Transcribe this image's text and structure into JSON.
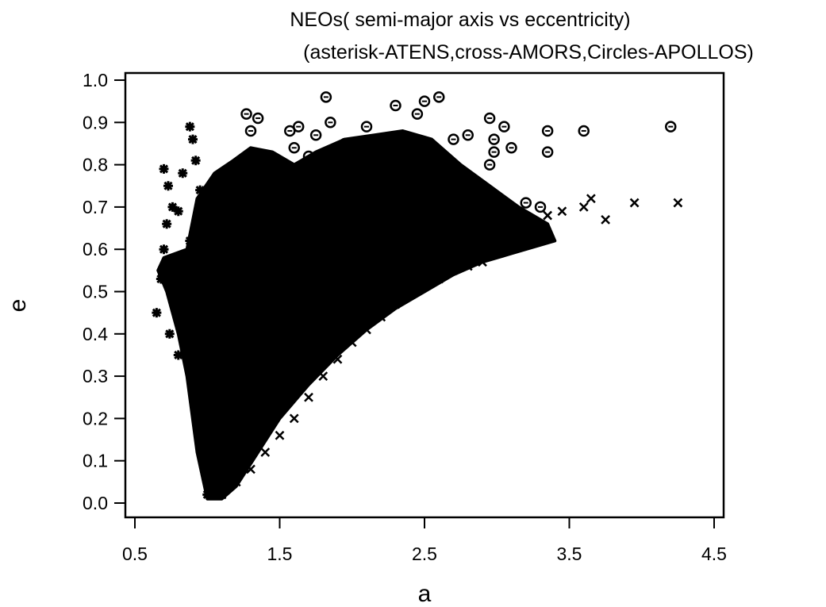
{
  "chart_data": {
    "type": "scatter",
    "title_lines": [
      "NEOs( semi-major axis vs eccentricity)",
      "(asterisk-ATENS,cross-AMORS,Circles-APOLLOS)"
    ],
    "xlabel": "a",
    "ylabel": "e",
    "xlim": [
      0.5,
      4.5
    ],
    "ylim": [
      0.0,
      1.0
    ],
    "xticks": [
      0.5,
      1.5,
      2.5,
      3.5,
      4.5
    ],
    "xtick_labels": [
      "0.5",
      "1.5",
      "2.5",
      "3.5",
      "4.5"
    ],
    "yticks": [
      0.0,
      0.1,
      0.2,
      0.3,
      0.4,
      0.5,
      0.6,
      0.7,
      0.8,
      0.9,
      1.0
    ],
    "ytick_labels": [
      "0.0",
      "0.1",
      "0.2",
      "0.3",
      "0.4",
      "0.5",
      "0.6",
      "0.7",
      "0.8",
      "0.9",
      "1.0"
    ],
    "grid": false,
    "legend": "none",
    "marker_color": "#000000",
    "series": [
      {
        "marker": "asterisk",
        "points": [
          [
            0.65,
            0.45
          ],
          [
            0.68,
            0.53
          ],
          [
            0.7,
            0.6
          ],
          [
            0.72,
            0.66
          ],
          [
            0.7,
            0.79
          ],
          [
            0.73,
            0.75
          ],
          [
            0.76,
            0.7
          ],
          [
            0.8,
            0.69
          ],
          [
            0.83,
            0.78
          ],
          [
            0.88,
            0.89
          ],
          [
            0.9,
            0.86
          ],
          [
            0.92,
            0.81
          ],
          [
            0.85,
            0.5
          ],
          [
            0.82,
            0.55
          ],
          [
            0.78,
            0.52
          ],
          [
            0.74,
            0.4
          ],
          [
            0.8,
            0.35
          ],
          [
            0.9,
            0.3
          ],
          [
            0.95,
            0.2
          ],
          [
            0.98,
            0.12
          ],
          [
            1.0,
            0.05
          ],
          [
            1.0,
            0.02
          ],
          [
            0.92,
            0.55
          ],
          [
            0.88,
            0.62
          ],
          [
            0.95,
            0.74
          ]
        ]
      },
      {
        "marker": "cross",
        "points": [
          [
            1.1,
            0.02
          ],
          [
            1.2,
            0.05
          ],
          [
            1.3,
            0.08
          ],
          [
            1.4,
            0.12
          ],
          [
            1.5,
            0.16
          ],
          [
            1.6,
            0.2
          ],
          [
            1.7,
            0.25
          ],
          [
            1.8,
            0.3
          ],
          [
            1.9,
            0.34
          ],
          [
            2.0,
            0.38
          ],
          [
            2.1,
            0.41
          ],
          [
            2.2,
            0.44
          ],
          [
            2.3,
            0.47
          ],
          [
            2.4,
            0.5
          ],
          [
            2.5,
            0.52
          ],
          [
            2.6,
            0.53
          ],
          [
            2.7,
            0.55
          ],
          [
            2.8,
            0.56
          ],
          [
            2.9,
            0.57
          ],
          [
            3.0,
            0.6
          ],
          [
            3.1,
            0.62
          ],
          [
            3.2,
            0.65
          ],
          [
            3.3,
            0.63
          ],
          [
            3.35,
            0.68
          ],
          [
            3.45,
            0.69
          ],
          [
            3.6,
            0.7
          ],
          [
            3.65,
            0.72
          ],
          [
            3.75,
            0.67
          ],
          [
            3.95,
            0.71
          ],
          [
            4.25,
            0.71
          ]
        ]
      },
      {
        "marker": "circle",
        "points": [
          [
            1.27,
            0.92
          ],
          [
            1.35,
            0.91
          ],
          [
            1.3,
            0.88
          ],
          [
            1.57,
            0.88
          ],
          [
            1.63,
            0.89
          ],
          [
            1.75,
            0.87
          ],
          [
            1.82,
            0.96
          ],
          [
            1.85,
            0.9
          ],
          [
            1.6,
            0.84
          ],
          [
            1.7,
            0.82
          ],
          [
            1.95,
            0.85
          ],
          [
            2.1,
            0.89
          ],
          [
            2.3,
            0.94
          ],
          [
            2.45,
            0.92
          ],
          [
            2.5,
            0.95
          ],
          [
            2.6,
            0.96
          ],
          [
            2.7,
            0.86
          ],
          [
            2.8,
            0.87
          ],
          [
            2.95,
            0.91
          ],
          [
            2.98,
            0.86
          ],
          [
            3.05,
            0.89
          ],
          [
            3.1,
            0.84
          ],
          [
            2.95,
            0.8
          ],
          [
            2.98,
            0.83
          ],
          [
            3.35,
            0.88
          ],
          [
            3.35,
            0.83
          ],
          [
            3.6,
            0.88
          ],
          [
            4.2,
            0.89
          ],
          [
            2.9,
            0.75
          ],
          [
            3.2,
            0.71
          ],
          [
            3.3,
            0.7
          ],
          [
            3.0,
            0.71
          ]
        ]
      }
    ]
  }
}
